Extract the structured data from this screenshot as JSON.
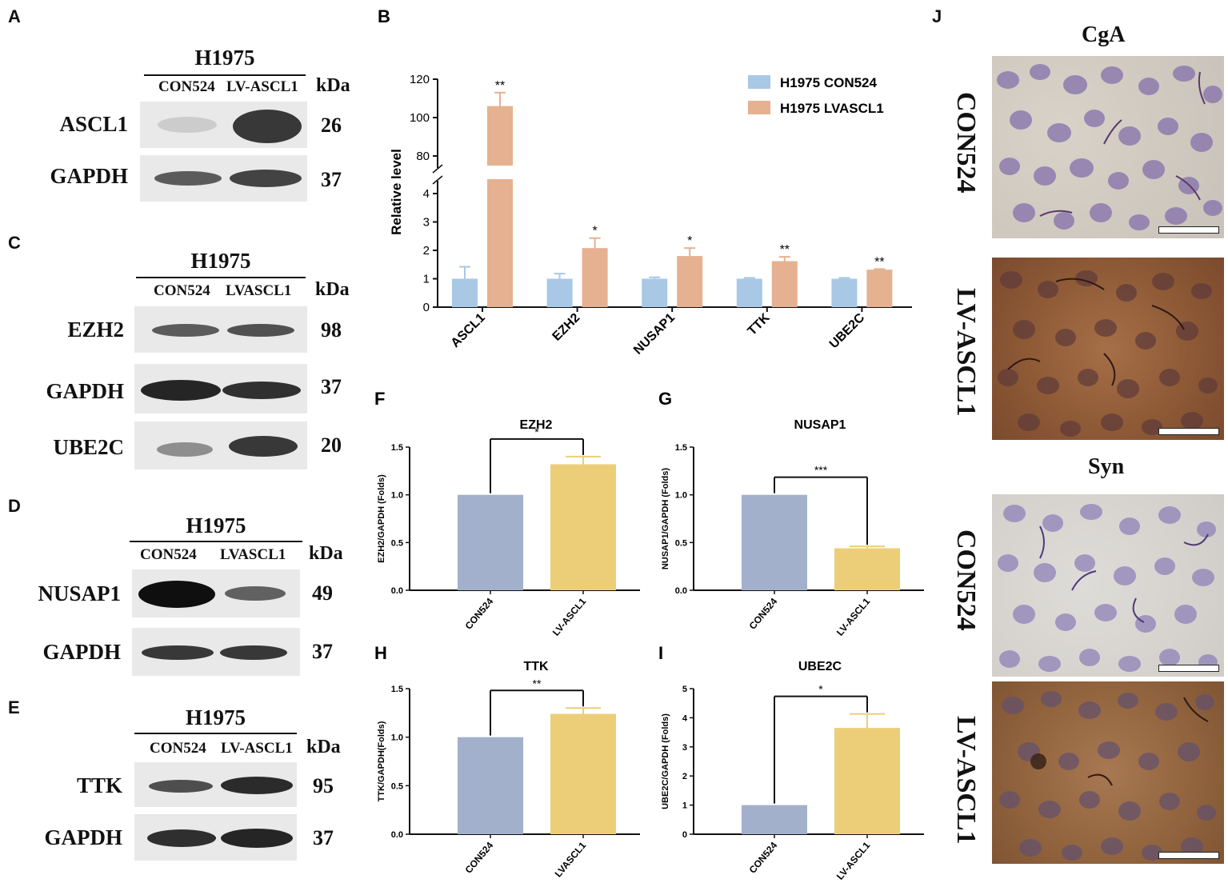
{
  "panels": {
    "A": {
      "letter": "A",
      "title": "H1975",
      "lanes": [
        "CON524",
        "LV-ASCL1"
      ],
      "kda": "kDa",
      "rows": [
        {
          "protein": "ASCL1",
          "mw": "26",
          "intensity": [
            0.15,
            0.85
          ]
        },
        {
          "protein": "GAPDH",
          "mw": "37",
          "intensity": [
            0.7,
            0.8
          ]
        }
      ]
    },
    "C": {
      "letter": "C",
      "title": "H1975",
      "lanes": [
        "CON524",
        "LVASCL1"
      ],
      "kda": "kDa",
      "rows": [
        {
          "protein": "EZH2",
          "mw": "98",
          "intensity": [
            0.7,
            0.75
          ]
        },
        {
          "protein": "GAPDH",
          "mw": "37",
          "intensity": [
            0.95,
            0.9
          ]
        },
        {
          "protein": "UBE2C",
          "mw": "20",
          "intensity": [
            0.45,
            0.85
          ]
        }
      ]
    },
    "D": {
      "letter": "D",
      "title": "H1975",
      "lanes": [
        "CON524",
        "LVASCL1"
      ],
      "kda": "kDa",
      "rows": [
        {
          "protein": "NUSAP1",
          "mw": "49",
          "intensity": [
            1.0,
            0.65
          ]
        },
        {
          "protein": "GAPDH",
          "mw": "37",
          "intensity": [
            0.85,
            0.85
          ]
        }
      ]
    },
    "E": {
      "letter": "E",
      "title": "H1975",
      "lanes": [
        "CON524",
        "LV-ASCL1"
      ],
      "kda": "kDa",
      "rows": [
        {
          "protein": "TTK",
          "mw": "95",
          "intensity": [
            0.75,
            0.9
          ]
        },
        {
          "protein": "GAPDH",
          "mw": "37",
          "intensity": [
            0.9,
            0.95
          ]
        }
      ]
    },
    "J": {
      "letter": "J",
      "stains": [
        {
          "title": "CgA",
          "rows": [
            "CON524",
            "LV-ASCL1"
          ]
        },
        {
          "title": "Syn",
          "rows": [
            "CON524",
            "LV-ASCL1"
          ]
        }
      ]
    }
  },
  "colors": {
    "b_con": "#a8c8e6",
    "b_lv": "#e5b190",
    "small_con": "#a3b0cb",
    "small_lv": "#ecce78",
    "stain_purple": "#8a76ad",
    "stain_brown": "#7b4a2e"
  },
  "chart_data": [
    {
      "id": "B",
      "letter": "B",
      "type": "bar",
      "ylabel": "Relative level",
      "categories": [
        "ASCL1",
        "EZH2",
        "NUSAP1",
        "TTK",
        "UBE2C"
      ],
      "series": [
        {
          "name": "H1975 CON524",
          "values": [
            1.0,
            1.0,
            1.0,
            1.0,
            1.0
          ],
          "errors": [
            0.42,
            0.18,
            0.05,
            0.03,
            0.03
          ]
        },
        {
          "name": "H1975 LVASCL1",
          "values": [
            106,
            2.08,
            1.8,
            1.62,
            1.32
          ],
          "errors": [
            7,
            0.35,
            0.28,
            0.15,
            0.02
          ]
        }
      ],
      "significance": [
        "**",
        "*",
        "*",
        "**",
        "**"
      ],
      "axis_break": {
        "lower": [
          0,
          4
        ],
        "upper": [
          80,
          120
        ]
      },
      "yticks_lower": [
        "0",
        "1",
        "2",
        "3",
        "4"
      ],
      "yticks_upper": [
        "80",
        "100",
        "120"
      ]
    },
    {
      "id": "F",
      "letter": "F",
      "type": "bar",
      "title": "EZH2",
      "ylabel": "EZH2/GAPDH (Folds)",
      "categories": [
        "CON524",
        "LV-ASCL1"
      ],
      "values": [
        1.0,
        1.32
      ],
      "errors": [
        0,
        0.08
      ],
      "ylim": [
        0,
        1.5
      ],
      "yticks": [
        "0.0",
        "0.5",
        "1.0",
        "1.5"
      ],
      "significance": "*"
    },
    {
      "id": "G",
      "letter": "G",
      "type": "bar",
      "title": "NUSAP1",
      "ylabel": "NUSAP1/GAPDH (Folds)",
      "categories": [
        "CON524",
        "LV-ASCL1"
      ],
      "values": [
        1.0,
        0.44
      ],
      "errors": [
        0,
        0.02
      ],
      "ylim": [
        0,
        1.5
      ],
      "yticks": [
        "0.0",
        "0.5",
        "1.0",
        "1.5"
      ],
      "significance": "***"
    },
    {
      "id": "H",
      "letter": "H",
      "type": "bar",
      "title": "TTK",
      "ylabel": "TTK/GAPDH(Folds)",
      "categories": [
        "CON524",
        "LVASCL1"
      ],
      "values": [
        1.0,
        1.24
      ],
      "errors": [
        0,
        0.06
      ],
      "ylim": [
        0,
        1.5
      ],
      "yticks": [
        "0.0",
        "0.5",
        "1.0",
        "1.5"
      ],
      "significance": "**"
    },
    {
      "id": "I",
      "letter": "I",
      "type": "bar",
      "title": "UBE2C",
      "ylabel": "UBE2C/GAPDH (Folds)",
      "categories": [
        "CON524",
        "LV-ASCL1"
      ],
      "values": [
        1.0,
        3.65
      ],
      "errors": [
        0,
        0.48
      ],
      "ylim": [
        0,
        5
      ],
      "yticks": [
        "0",
        "1",
        "2",
        "3",
        "4",
        "5"
      ],
      "significance": "*"
    }
  ]
}
